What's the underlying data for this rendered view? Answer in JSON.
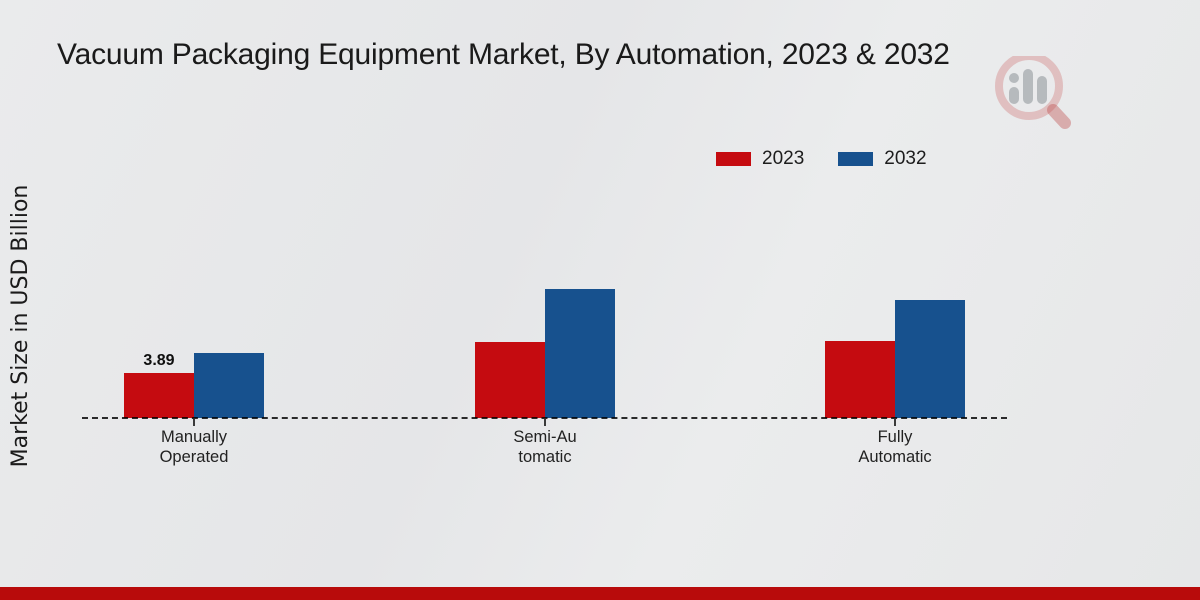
{
  "title": "Vacuum Packaging Equipment Market, By Automation, 2023 & 2032",
  "y_axis_label": "Market Size in USD Billion",
  "legend": {
    "items": [
      {
        "label": "2023",
        "color": "#c50b10"
      },
      {
        "label": "2032",
        "color": "#17518e"
      }
    ]
  },
  "chart_data": {
    "type": "bar",
    "title": "Vacuum Packaging Equipment Market, By Automation, 2023 & 2032",
    "ylabel": "Market Size in USD Billion",
    "xlabel": "",
    "categories": [
      "Manually Operated",
      "Semi-Automatic",
      "Fully Automatic"
    ],
    "categories_display_lines": [
      [
        "Manually",
        "Operated"
      ],
      [
        "Semi-Au",
        "tomatic"
      ],
      [
        "Fully",
        "Automatic"
      ]
    ],
    "series": [
      {
        "name": "2023",
        "color": "#c50b10",
        "values": [
          3.89,
          6.55,
          6.65
        ],
        "value_labels": [
          "3.89",
          "",
          ""
        ]
      },
      {
        "name": "2032",
        "color": "#17518e",
        "values": [
          5.6,
          11.15,
          10.2
        ],
        "value_labels": [
          "",
          "",
          ""
        ]
      }
    ],
    "ylim": [
      0,
      12
    ],
    "gridlines": false,
    "y_ticks_visible": false,
    "baseline_style": "dashed",
    "legend_position": "top-right"
  },
  "footer": {
    "color": "#b80b0b"
  },
  "watermark": {
    "name": "magnifier-bar-chart-logo"
  }
}
